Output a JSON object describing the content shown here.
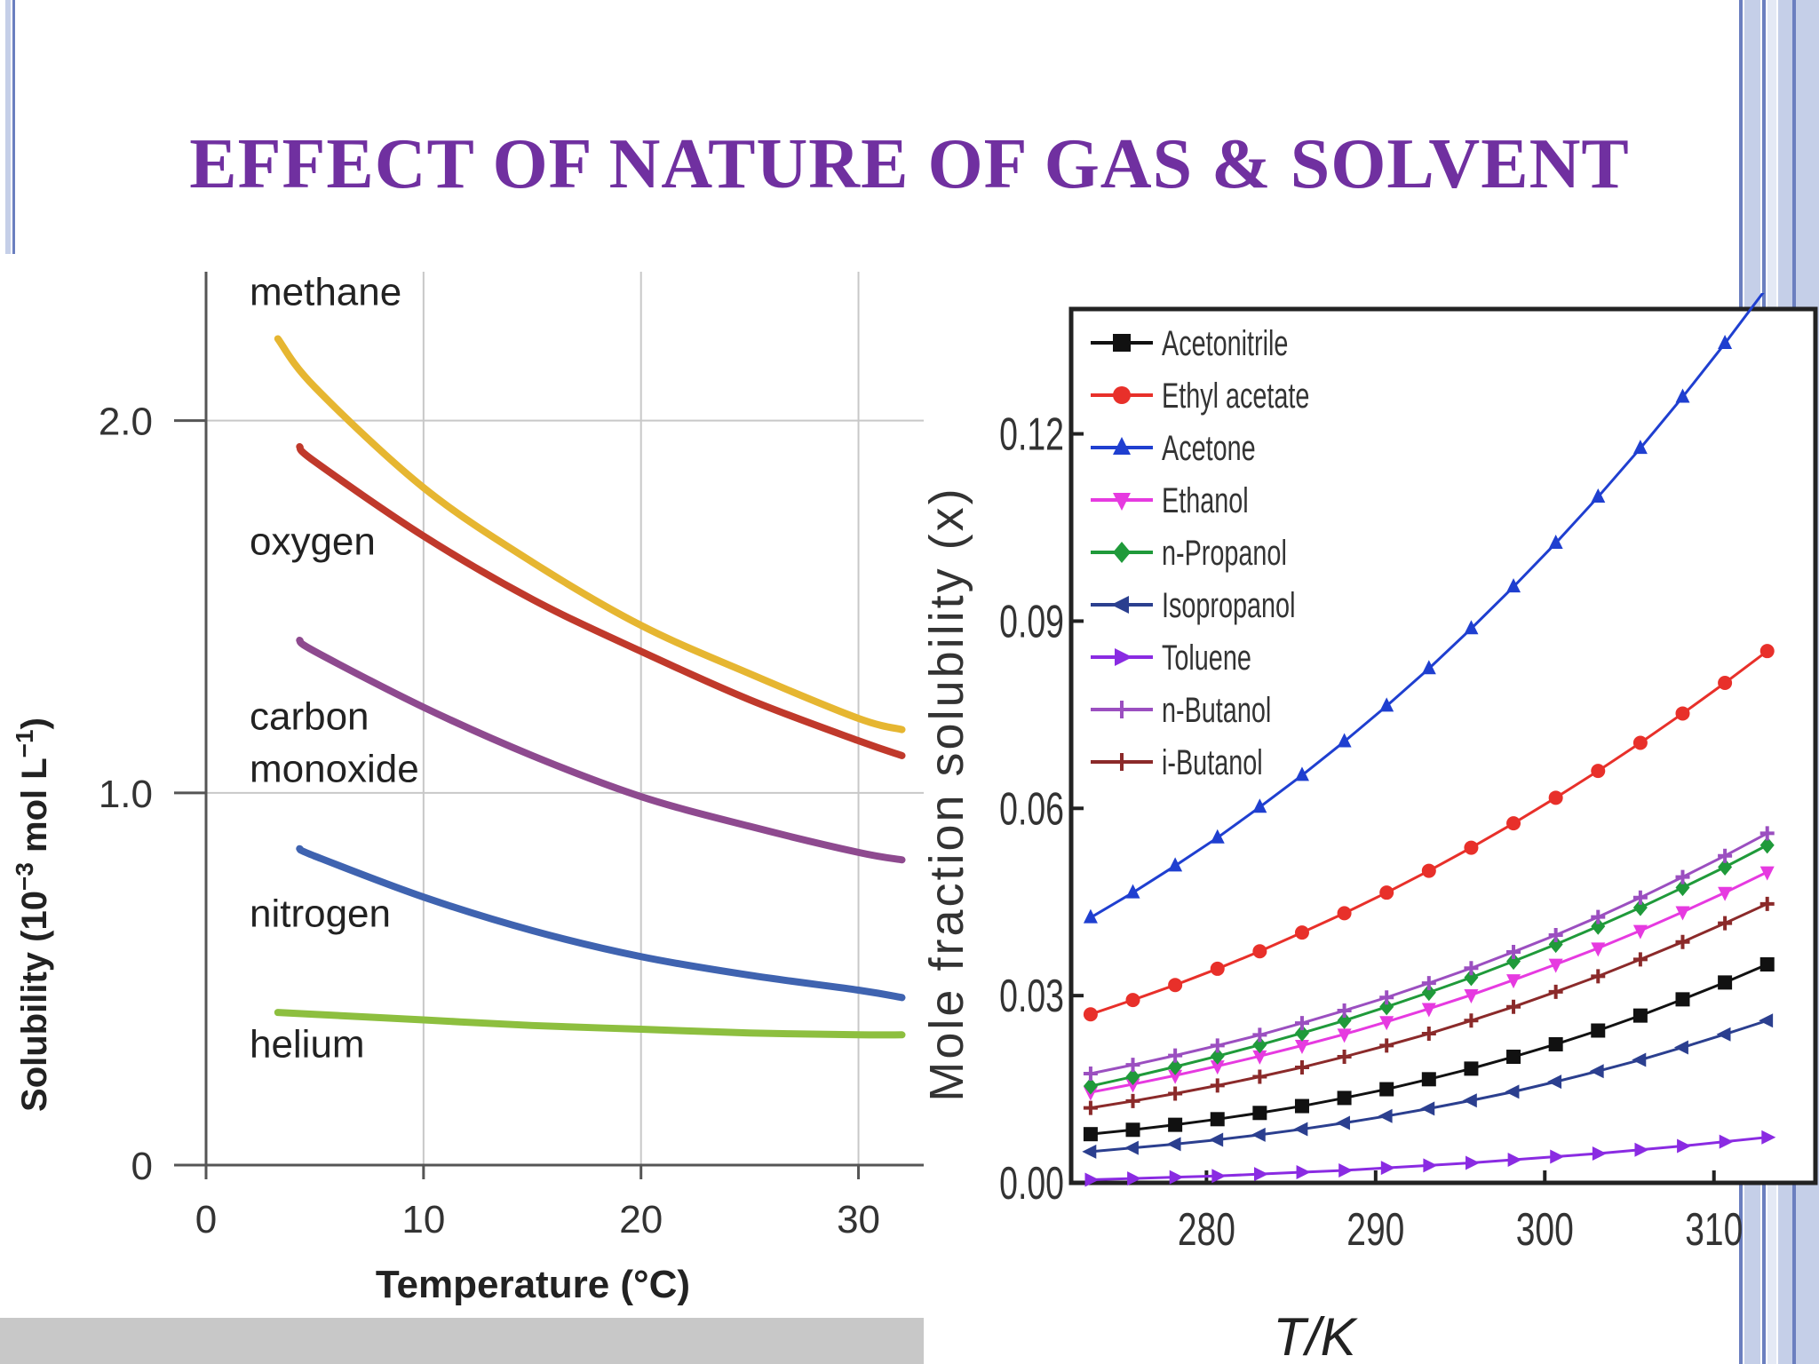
{
  "slide": {
    "title": "EFFECT OF NATURE OF GAS & SOLVENT"
  },
  "colors": {
    "title": "#7030a0",
    "border_light": "#c5cfe8",
    "border_dark": "#6b7fbf"
  },
  "chart_data": [
    {
      "type": "line",
      "title": "",
      "xlabel": "Temperature (°C)",
      "ylabel": "Solubility (10",
      "ylabel_exp1": "−3",
      "ylabel_mid": " mol L",
      "ylabel_exp2": "−1",
      "ylabel_end": ")",
      "xlim": [
        0,
        33
      ],
      "ylim": [
        0,
        2.4
      ],
      "xticks": [
        0,
        10,
        20,
        30
      ],
      "yticks": [
        0,
        1.0,
        2.0
      ],
      "ytick_labels": [
        "0",
        "1.0",
        "2.0"
      ],
      "grid": true,
      "series": [
        {
          "name": "methane",
          "color": "#e6b631",
          "x": [
            3.3,
            5,
            10,
            15,
            20,
            25,
            30,
            32
          ],
          "y": [
            2.22,
            2.09,
            1.82,
            1.62,
            1.45,
            1.32,
            1.2,
            1.17
          ]
        },
        {
          "name": "oxygen",
          "color": "#c0392b",
          "x": [
            4.3,
            5,
            10,
            15,
            20,
            25,
            30,
            32
          ],
          "y": [
            1.93,
            1.89,
            1.69,
            1.52,
            1.38,
            1.25,
            1.14,
            1.1
          ]
        },
        {
          "name": "carbon monoxide",
          "color": "#8e4a8f",
          "x": [
            4.3,
            5,
            10,
            15,
            20,
            25,
            30,
            32
          ],
          "y": [
            1.41,
            1.38,
            1.23,
            1.1,
            0.99,
            0.91,
            0.84,
            0.82
          ]
        },
        {
          "name": "nitrogen",
          "color": "#3f63b0",
          "x": [
            4.3,
            5,
            10,
            15,
            20,
            25,
            30,
            32
          ],
          "y": [
            0.85,
            0.83,
            0.72,
            0.63,
            0.56,
            0.51,
            0.47,
            0.45
          ]
        },
        {
          "name": "helium",
          "color": "#8dbf3f",
          "x": [
            3.3,
            5,
            10,
            15,
            20,
            25,
            30,
            32
          ],
          "y": [
            0.41,
            0.405,
            0.39,
            0.375,
            0.365,
            0.355,
            0.35,
            0.35
          ]
        }
      ],
      "labels": [
        {
          "text": "methane",
          "x": 2,
          "y": 2.31
        },
        {
          "text": "oxygen",
          "x": 2,
          "y": 1.64
        },
        {
          "text": "carbon",
          "x": 2,
          "y": 1.17
        },
        {
          "text": "monoxide",
          "x": 2,
          "y": 1.03
        },
        {
          "text": "nitrogen",
          "x": 2,
          "y": 0.64
        },
        {
          "text": "helium",
          "x": 2,
          "y": 0.29
        }
      ]
    },
    {
      "type": "line",
      "title": "",
      "xlabel": "T/K",
      "ylabel": "Mole fraction solubility (x)",
      "xlim": [
        272,
        316
      ],
      "ylim": [
        0,
        0.14
      ],
      "xticks": [
        280,
        290,
        300,
        310
      ],
      "yticks": [
        0.0,
        0.03,
        0.06,
        0.09,
        0.12
      ],
      "ytick_labels": [
        "0.00",
        "0.03",
        "0.06",
        "0.09",
        "0.12"
      ],
      "grid": false,
      "legend": "top-left",
      "x": [
        273.15,
        275.65,
        278.15,
        280.65,
        283.15,
        285.65,
        288.15,
        290.65,
        293.15,
        295.65,
        298.15,
        300.65,
        303.15,
        305.65,
        308.15,
        310.65,
        313.15
      ],
      "series": [
        {
          "name": "Acetonitrile",
          "color": "#111111",
          "marker": "square",
          "values": [
            0.0078,
            0.0085,
            0.0093,
            0.0102,
            0.0112,
            0.0123,
            0.0136,
            0.015,
            0.0166,
            0.0183,
            0.0202,
            0.0222,
            0.0244,
            0.0268,
            0.0294,
            0.0321,
            0.035
          ]
        },
        {
          "name": "Ethyl acetate",
          "color": "#e8302a",
          "marker": "circle",
          "values": [
            0.027,
            0.0293,
            0.0317,
            0.0343,
            0.0371,
            0.0401,
            0.0432,
            0.0465,
            0.05,
            0.0537,
            0.0576,
            0.0617,
            0.066,
            0.0705,
            0.0752,
            0.0801,
            0.0852
          ]
        },
        {
          "name": "Acetone",
          "color": "#1f3fd0",
          "marker": "triangle-up",
          "values": [
            0.0425,
            0.0465,
            0.0508,
            0.0553,
            0.0602,
            0.0653,
            0.0707,
            0.0764,
            0.0824,
            0.0888,
            0.0955,
            0.1025,
            0.1099,
            0.1177,
            0.1259,
            0.1345,
            0.1435
          ]
        },
        {
          "name": "Ethanol",
          "color": "#e63ae0",
          "marker": "triangle-down",
          "values": [
            0.0145,
            0.0158,
            0.0172,
            0.0187,
            0.0203,
            0.022,
            0.0238,
            0.0258,
            0.0279,
            0.0301,
            0.0325,
            0.035,
            0.0376,
            0.0404,
            0.0434,
            0.0465,
            0.0498
          ]
        },
        {
          "name": "n-Propanol",
          "color": "#1f9a3a",
          "marker": "diamond",
          "values": [
            0.0155,
            0.017,
            0.0186,
            0.0203,
            0.0221,
            0.024,
            0.026,
            0.0282,
            0.0305,
            0.0329,
            0.0355,
            0.0382,
            0.0411,
            0.0441,
            0.0473,
            0.0506,
            0.0541
          ]
        },
        {
          "name": "Isopropanol",
          "color": "#2b3f8f",
          "marker": "triangle-left",
          "values": [
            0.005,
            0.0056,
            0.0062,
            0.0069,
            0.0077,
            0.0086,
            0.0096,
            0.0107,
            0.0119,
            0.0132,
            0.0146,
            0.0162,
            0.0179,
            0.0197,
            0.0217,
            0.0238,
            0.026
          ]
        },
        {
          "name": "Toluene",
          "color": "#8a2be2",
          "marker": "triangle-right",
          "values": [
            0.0005,
            0.0007,
            0.0009,
            0.0011,
            0.0014,
            0.0017,
            0.002,
            0.0024,
            0.0028,
            0.0032,
            0.0037,
            0.0042,
            0.0047,
            0.0053,
            0.0059,
            0.0066,
            0.0073
          ]
        },
        {
          "name": "n-Butanol",
          "color": "#9b4fc0",
          "marker": "cross",
          "values": [
            0.0175,
            0.0189,
            0.0204,
            0.022,
            0.0237,
            0.0256,
            0.0276,
            0.0297,
            0.032,
            0.0344,
            0.037,
            0.0397,
            0.0426,
            0.0457,
            0.049,
            0.0524,
            0.056
          ]
        },
        {
          "name": "i-Butanol",
          "color": "#8b2a2a",
          "marker": "cross",
          "values": [
            0.012,
            0.0131,
            0.0143,
            0.0156,
            0.017,
            0.0185,
            0.0202,
            0.022,
            0.0239,
            0.026,
            0.0282,
            0.0306,
            0.0331,
            0.0358,
            0.0386,
            0.0416,
            0.0447
          ]
        }
      ]
    }
  ]
}
